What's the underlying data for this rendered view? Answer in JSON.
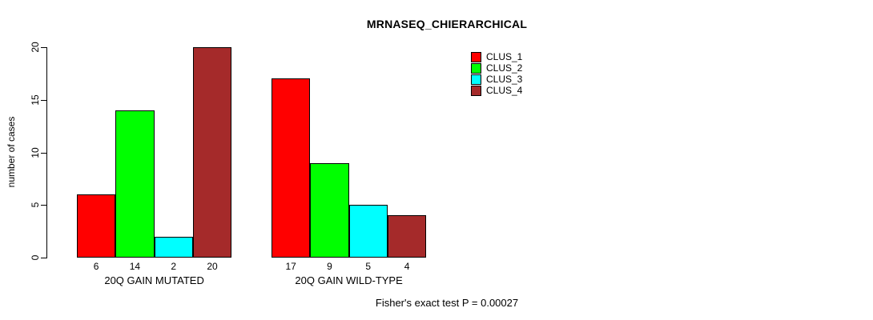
{
  "chart_data": {
    "type": "bar",
    "title": "MRNASEQ_CHIERARCHICAL",
    "ylabel": "number of cases",
    "xlabel": "",
    "ylim": [
      0,
      20
    ],
    "yticks": [
      0,
      5,
      10,
      15,
      20
    ],
    "grid": false,
    "legend_position": "top-right",
    "categories": [
      "20Q GAIN MUTATED",
      "20Q GAIN WILD-TYPE"
    ],
    "series": [
      {
        "name": "CLUS_1",
        "color": "#ff0000",
        "values": [
          6,
          17
        ]
      },
      {
        "name": "CLUS_2",
        "color": "#00ff00",
        "values": [
          14,
          9
        ]
      },
      {
        "name": "CLUS_3",
        "color": "#00ffff",
        "values": [
          2,
          5
        ]
      },
      {
        "name": "CLUS_4",
        "color": "#a52a2a",
        "values": [
          20,
          4
        ]
      }
    ],
    "bar_value_labels": [
      [
        6,
        14,
        2,
        20
      ],
      [
        17,
        9,
        5,
        4
      ]
    ],
    "annotation": "Fisher's exact test P = 0.00027",
    "bar_border_color": "#000000",
    "axis_color": "#000000"
  }
}
